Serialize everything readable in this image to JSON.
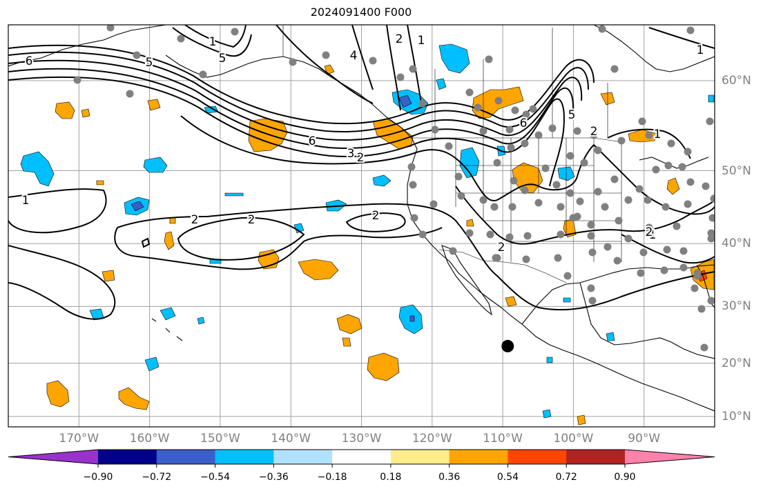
{
  "title": "2024091400 F000",
  "map": {
    "lon_labels": [
      "170°W",
      "160°W",
      "150°W",
      "140°W",
      "130°W",
      "120°W",
      "110°W",
      "100°W",
      "90°W"
    ],
    "lon_values": [
      -170,
      -160,
      -150,
      -140,
      -130,
      -120,
      -110,
      -100,
      -90
    ],
    "lat_labels": [
      "60°N",
      "50°N",
      "40°N",
      "30°N",
      "20°N",
      "10°N"
    ],
    "lat_values": [
      60,
      50,
      40,
      30,
      20,
      10
    ],
    "extent": {
      "lon_min": -180,
      "lon_max": -80,
      "lat_min": 8,
      "lat_max": 65
    },
    "contour_labels": [
      "6",
      "5",
      "5",
      "4",
      "2",
      "1",
      "6",
      "3",
      "2",
      "2",
      "1",
      "2",
      "2",
      "2",
      "1",
      "2",
      "1",
      "1",
      "6",
      "5",
      "2",
      "1"
    ],
    "station_marker": {
      "label": "",
      "lon": -109.3,
      "lat": 23.1
    }
  },
  "colorbar": {
    "colors": [
      "#9932CC",
      "#00008B",
      "#3A5FCD",
      "#00BFFF",
      "#B0E2FF",
      "#FFFFFF",
      "#FFEC8B",
      "#FFA500",
      "#FF4500",
      "#B22222",
      "#FF82AB"
    ],
    "ticks": [
      "−0.90",
      "−0.72",
      "−0.54",
      "−0.36",
      "−0.18",
      "0.18",
      "0.36",
      "0.54",
      "0.72",
      "0.90"
    ]
  }
}
